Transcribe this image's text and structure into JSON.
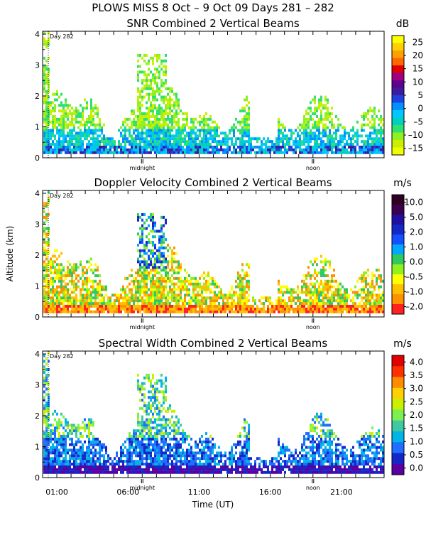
{
  "header": {
    "line1": "PLOWS MISS   8 Oct –  9 Oct 09 Days 281 – 282"
  },
  "colors": {
    "snr_palette": [
      "#ff00ff",
      "#ff00ff",
      "#00b4ff",
      "#00c8ff",
      "#3dd13d",
      "#7cf000",
      "#ffff40",
      "#ffcc00",
      "#ffa000",
      "#ff6800",
      "#e00000",
      "#a00080",
      "#60008c",
      "#20108c",
      "#1414c8"
    ],
    "vel_palette": [
      "#ff2020",
      "#ff9000",
      "#ffc000",
      "#ffff00",
      "#90f020",
      "#30c860",
      "#00a8ff",
      "#1450ff",
      "#2010a0",
      "#3c0050",
      "#300020"
    ],
    "sw_palette": [
      "#5a00a0",
      "#1428c8",
      "#1e6eff",
      "#00b4e6",
      "#40c8a0",
      "#7cf050",
      "#c8f000",
      "#ffd000",
      "#ff8c00",
      "#ff3000",
      "#e00000"
    ]
  },
  "chart_data": [
    {
      "type": "heatmap",
      "title": "SNR Combined 2 Vertical Beams",
      "ylabel": "",
      "xlabel": "",
      "ylim": [
        0,
        4
      ],
      "yticks": [
        "0",
        "1",
        "2",
        "3",
        "4"
      ],
      "day_marker": "Day 282",
      "x_markers": [
        {
          "label": "midnight",
          "hour": 7
        },
        {
          "label": "noon",
          "hour": 19
        }
      ],
      "colorbar": {
        "unit": "dB",
        "ticks": [
          "25",
          "20",
          "15",
          "10",
          "5",
          "0",
          "–5",
          "–10",
          "–15"
        ],
        "colors": [
          "#ffff00",
          "#ffd000",
          "#ffa000",
          "#ff6800",
          "#e00000",
          "#a00080",
          "#60008c",
          "#3c1c9c",
          "#2040e0",
          "#0090ff",
          "#00c8ff",
          "#00d0c0",
          "#30e070",
          "#90f020",
          "#c8f000",
          "#f0ff00"
        ]
      }
    },
    {
      "type": "heatmap",
      "title": "Doppler Velocity Combined 2 Vertical Beams",
      "ylabel": "Altitude (km)",
      "xlabel": "",
      "ylim": [
        0,
        4
      ],
      "yticks": [
        "0",
        "1",
        "2",
        "3",
        "4"
      ],
      "day_marker": "Day 282",
      "x_markers": [
        {
          "label": "midnight",
          "hour": 7
        },
        {
          "label": "noon",
          "hour": 19
        }
      ],
      "colorbar": {
        "unit": "m/s",
        "ticks": [
          "10.0",
          "5.0",
          "2.0",
          "1.0",
          "0.0",
          "–0.5",
          "–1.0",
          "–2.0"
        ],
        "colors": [
          "#300020",
          "#3c0050",
          "#2010a0",
          "#1428c8",
          "#1450ff",
          "#00a8ff",
          "#30c860",
          "#90f020",
          "#ffff00",
          "#ffc000",
          "#ff9000",
          "#ff2020"
        ]
      }
    },
    {
      "type": "heatmap",
      "title": "Spectral Width Combined 2 Vertical Beams",
      "ylabel": "",
      "xlabel": "Time (UT)",
      "ylim": [
        0,
        4
      ],
      "yticks": [
        "0",
        "1",
        "2",
        "3",
        "4"
      ],
      "day_marker": "Day 282",
      "x_markers": [
        {
          "label": "midnight",
          "hour": 7
        },
        {
          "label": "noon",
          "hour": 19
        }
      ],
      "xticks": [
        "01:00",
        "06:00",
        "11:00",
        "16:00",
        "21:00"
      ],
      "colorbar": {
        "unit": "m/s",
        "ticks": [
          "4.0",
          "3.5",
          "3.0",
          "2.5",
          "2.0",
          "1.5",
          "1.0",
          "0.5",
          "0.0"
        ],
        "colors": [
          "#e00000",
          "#ff3000",
          "#ff8c00",
          "#ffd000",
          "#c8f000",
          "#7cf050",
          "#40c8a0",
          "#00b4e6",
          "#1e6eff",
          "#1428c8",
          "#5a00a0"
        ]
      }
    }
  ]
}
